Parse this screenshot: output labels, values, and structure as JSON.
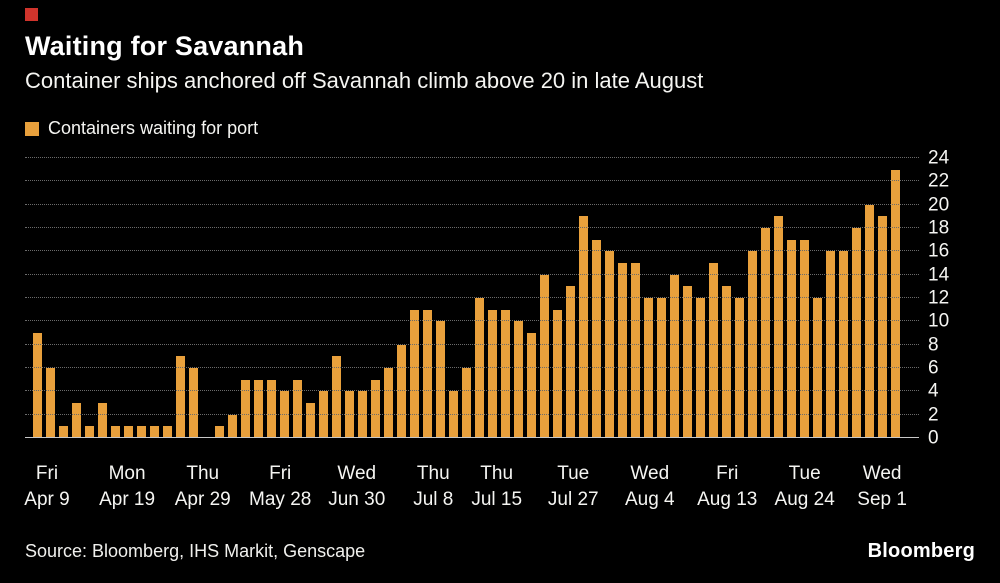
{
  "brand": {
    "marker_color": "#d0342c",
    "logo_text": "Bloomberg"
  },
  "header": {
    "title": "Waiting for Savannah",
    "subtitle": "Container ships anchored off Savannah climb above 20 in late August"
  },
  "legend": {
    "label": "Containers waiting for port",
    "swatch_color": "#E8A03C"
  },
  "footer": {
    "source": "Source: Bloomberg, IHS Markit, Genscape"
  },
  "chart_data": {
    "type": "bar",
    "title": "Waiting for Savannah",
    "subtitle": "Container ships anchored off Savannah climb above 20 in late August",
    "series_name": "Containers waiting for port",
    "bar_color": "#E8A03C",
    "grid": true,
    "yaxis_side": "right",
    "ylim": [
      0,
      24
    ],
    "ytick_step": 2,
    "values": [
      9,
      6,
      1,
      3,
      1,
      3,
      1,
      1,
      1,
      1,
      1,
      7,
      6,
      0,
      1,
      2,
      5,
      5,
      5,
      4,
      5,
      3,
      4,
      7,
      4,
      4,
      5,
      6,
      8,
      11,
      11,
      10,
      4,
      6,
      12,
      11,
      11,
      10,
      9,
      14,
      11,
      13,
      19,
      17,
      16,
      15,
      15,
      12,
      12,
      14,
      13,
      12,
      15,
      13,
      12,
      16,
      18,
      19,
      17,
      17,
      12,
      16,
      16,
      18,
      20,
      19,
      23
    ],
    "xticks": [
      {
        "weekday": "Fri",
        "date": "Apr 9",
        "pos": 2.5
      },
      {
        "weekday": "Mon",
        "date": "Apr 19",
        "pos": 11.6
      },
      {
        "weekday": "Thu",
        "date": "Apr 29",
        "pos": 20.2
      },
      {
        "weekday": "Fri",
        "date": "May 28",
        "pos": 29.0
      },
      {
        "weekday": "Wed",
        "date": "Jun 30",
        "pos": 37.7
      },
      {
        "weekday": "Thu",
        "date": "Jul 8",
        "pos": 46.4
      },
      {
        "weekday": "Thu",
        "date": "Jul 15",
        "pos": 53.6
      },
      {
        "weekday": "Tue",
        "date": "Jul 27",
        "pos": 62.3
      },
      {
        "weekday": "Wed",
        "date": "Aug 4",
        "pos": 71.0
      },
      {
        "weekday": "Fri",
        "date": "Aug 13",
        "pos": 79.8
      },
      {
        "weekday": "Tue",
        "date": "Aug 24",
        "pos": 88.6
      },
      {
        "weekday": "Wed",
        "date": "Sep 1",
        "pos": 97.4
      }
    ]
  }
}
